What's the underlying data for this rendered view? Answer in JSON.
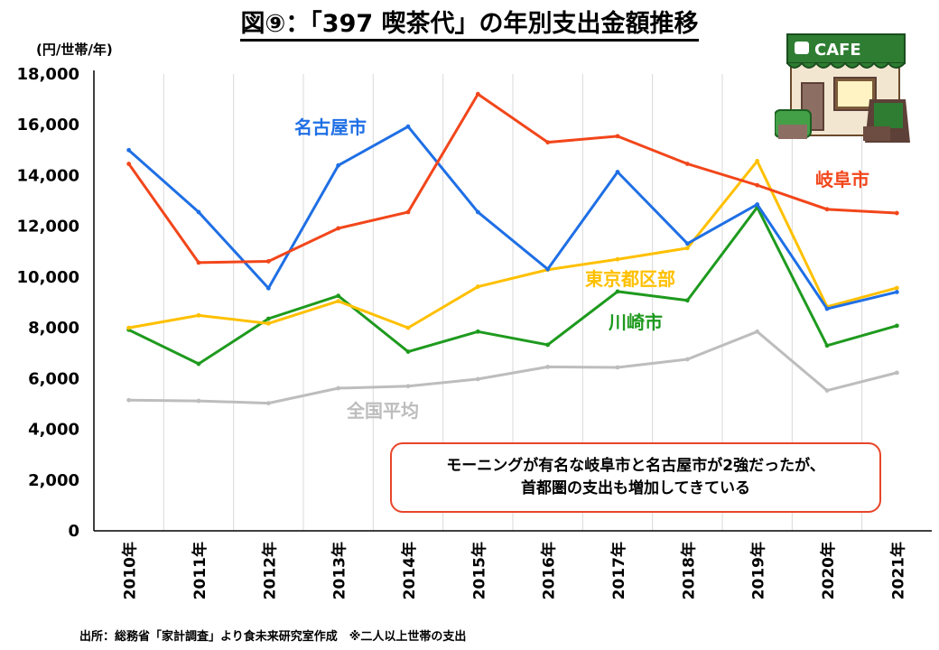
{
  "title": "図⑨：「397 喫茶代」の年別支出金額推移",
  "source_note": "出所：総務省「家計調査」より食未来研究室作成　※二人以上世帯の支出",
  "callout": {
    "line1": "モーニングが有名な岐阜市と名古屋市が2強だったが、",
    "line2": "首都圏の支出も増加してきている"
  },
  "cafe_sign": "CAFE",
  "chart_data": {
    "type": "line",
    "title": "「397 喫茶代」の年別支出金額推移",
    "ylabel": "(円/世帯/年)",
    "xlabel": "",
    "ylim": [
      0,
      18000
    ],
    "yticks": [
      0,
      2000,
      4000,
      6000,
      8000,
      10000,
      12000,
      14000,
      16000,
      18000
    ],
    "ytick_labels": [
      "0",
      "2,000",
      "4,000",
      "6,000",
      "8,000",
      "10,000",
      "12,000",
      "14,000",
      "16,000",
      "18,000"
    ],
    "grid": "vertical",
    "categories": [
      "2010年",
      "2011年",
      "2012年",
      "2013年",
      "2014年",
      "2015年",
      "2016年",
      "2017年",
      "2018年",
      "2019年",
      "2020年",
      "2021年"
    ],
    "series": [
      {
        "name": "全国平均",
        "color": "#bdbdbd",
        "values": [
          5150,
          5120,
          5030,
          5620,
          5700,
          5980,
          6460,
          6440,
          6760,
          7850,
          5530,
          6230
        ]
      },
      {
        "name": "川崎市",
        "color": "#1e9a1e",
        "values": [
          7920,
          6580,
          8360,
          9260,
          7060,
          7850,
          7330,
          9430,
          9080,
          12750,
          7300,
          8080
        ]
      },
      {
        "name": "東京都区部",
        "color": "#ffc000",
        "values": [
          8000,
          8490,
          8170,
          9050,
          8000,
          9620,
          10290,
          10700,
          11140,
          14570,
          8830,
          9570
        ]
      },
      {
        "name": "名古屋市",
        "color": "#1f6fe5",
        "values": [
          15000,
          12560,
          9560,
          14400,
          15930,
          12560,
          10310,
          14140,
          11320,
          12860,
          8750,
          9410
        ]
      },
      {
        "name": "岐阜市",
        "color": "#f2461b",
        "values": [
          14460,
          10570,
          10620,
          11920,
          12560,
          17210,
          15310,
          15550,
          14460,
          13620,
          12670,
          12520
        ]
      }
    ],
    "annotations": [
      {
        "text": "名古屋市",
        "series": "名古屋市"
      },
      {
        "text": "岐阜市",
        "series": "岐阜市"
      },
      {
        "text": "東京都区部",
        "series": "東京都区部"
      },
      {
        "text": "川崎市",
        "series": "川崎市"
      },
      {
        "text": "全国平均",
        "series": "全国平均"
      }
    ]
  }
}
